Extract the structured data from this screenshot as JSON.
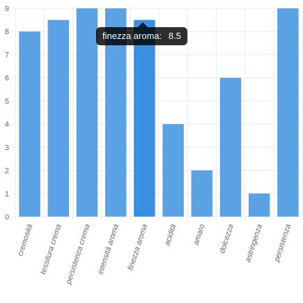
{
  "chart_data": {
    "type": "bar",
    "categories": [
      "cremosità",
      "tessitura crema",
      "persistenza crema",
      "intensità aroma",
      "finezza aroma",
      "acidità",
      "amaro",
      "dolcezza",
      "astringenza",
      "persistenza"
    ],
    "values": [
      8,
      8.5,
      9,
      9,
      8.5,
      4,
      2,
      6,
      1,
      9
    ],
    "ylim": [
      0,
      9
    ],
    "yticks": [
      "0",
      "1",
      "2",
      "3",
      "4",
      "5",
      "6",
      "7",
      "8",
      "9"
    ],
    "grid": true,
    "highlighted_index": 4,
    "colors": {
      "bar": "#5ba2e4",
      "bar_highlight": "#3a8fe0",
      "grid": "#ebebeb"
    }
  },
  "tooltip": {
    "label": "finezza aroma:",
    "value": "8.5"
  }
}
